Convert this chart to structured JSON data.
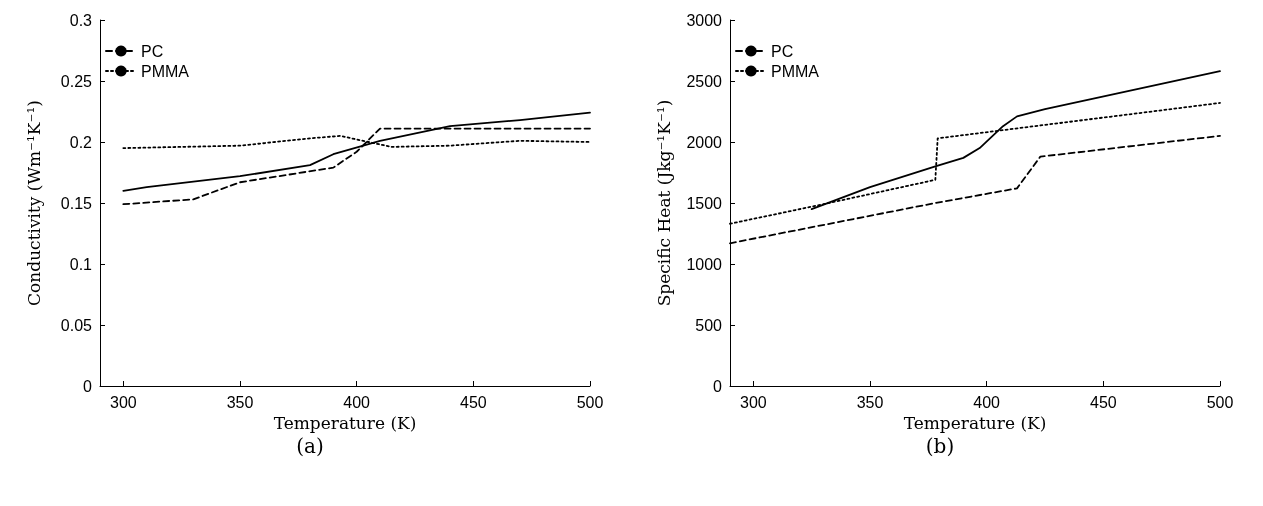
{
  "chart_data": [
    {
      "type": "line",
      "xlabel": "Temperature (K)",
      "ylabel": "Conductivity (Wm⁻¹K⁻¹)",
      "annotations": [
        "(a)"
      ],
      "xlim": [
        290,
        500
      ],
      "xticks": [
        300,
        350,
        400,
        450,
        500
      ],
      "ylim": [
        0,
        0.3
      ],
      "yticks": [
        0,
        0.05,
        0.1,
        0.15,
        0.2,
        0.25,
        0.3
      ],
      "grid": false,
      "legend": "top left",
      "marker": "none",
      "series": [
        {
          "color": "#000000",
          "line_style": "solid",
          "x": [
            300,
            310,
            350,
            380,
            390,
            410,
            440,
            470,
            500
          ],
          "values": [
            0.16,
            0.163,
            0.172,
            0.181,
            0.19,
            0.201,
            0.213,
            0.218,
            0.224
          ]
        },
        {
          "name": "PC",
          "color": "#000000",
          "line_style": "dashed",
          "x": [
            300,
            330,
            350,
            390,
            400,
            410,
            500
          ],
          "values": [
            0.149,
            0.153,
            0.167,
            0.179,
            0.192,
            0.211,
            0.211
          ]
        },
        {
          "name": "PMMA",
          "color": "#000000",
          "line_style": "dotted",
          "x": [
            300,
            350,
            380,
            393,
            405,
            415,
            440,
            470,
            500
          ],
          "values": [
            0.195,
            0.197,
            0.203,
            0.205,
            0.2,
            0.196,
            0.197,
            0.201,
            0.2
          ]
        }
      ]
    },
    {
      "type": "line",
      "xlabel": "Temperature (K)",
      "ylabel": "Specific Heat (Jkg⁻¹K⁻¹)",
      "annotations": [
        "(b)"
      ],
      "xlim": [
        290,
        500
      ],
      "xticks": [
        300,
        350,
        400,
        450,
        500
      ],
      "ylim": [
        0,
        3000
      ],
      "yticks": [
        0,
        500,
        1000,
        1500,
        2000,
        2500,
        3000
      ],
      "grid": false,
      "legend": "top left",
      "marker": "none",
      "series": [
        {
          "color": "#000000",
          "line_style": "solid",
          "x": [
            325,
            350,
            378,
            390,
            397,
            407,
            413,
            425,
            500
          ],
          "values": [
            1450,
            1630,
            1800,
            1870,
            1950,
            2130,
            2210,
            2270,
            2580
          ]
        },
        {
          "name": "PC",
          "color": "#000000",
          "line_style": "dashed",
          "x": [
            290,
            378,
            413,
            423,
            500
          ],
          "values": [
            1170,
            1500,
            1620,
            1880,
            2050
          ]
        },
        {
          "name": "PMMA",
          "color": "#000000",
          "line_style": "dotted",
          "x": [
            290,
            330,
            378,
            379,
            500
          ],
          "values": [
            1330,
            1490,
            1690,
            2030,
            2320
          ]
        }
      ]
    }
  ]
}
